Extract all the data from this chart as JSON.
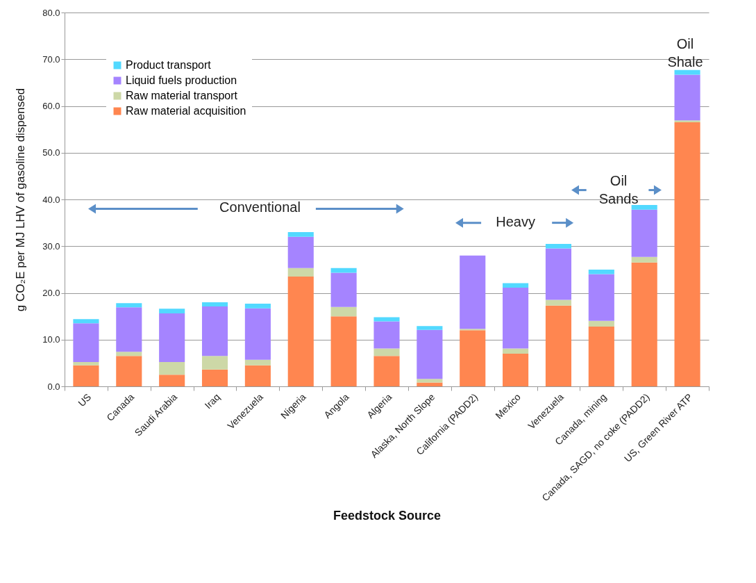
{
  "chart_data": {
    "type": "bar",
    "stacked": true,
    "xlabel": "Feedstock Source",
    "ylabel": "g CO₂E per MJ LHV of gasoline dispensed",
    "categories": [
      "US",
      "Canada",
      "Saudi Arabia",
      "Iraq",
      "Venezuela",
      "Nigeria",
      "Angola",
      "Algeria",
      "Alaska, North Slope",
      "California (PADD2)",
      "Mexico",
      "Venezuela",
      "Canada, mining",
      "Canada, SAGD, no coke (PADD2)",
      "US, Green River ATP"
    ],
    "series": [
      {
        "name": "Raw material acquisition",
        "color": "#ff8650",
        "values": [
          4.5,
          6.5,
          2.5,
          3.6,
          4.5,
          23.5,
          15.0,
          6.5,
          0.8,
          12.0,
          7.0,
          17.3,
          12.8,
          26.5,
          56.5
        ]
      },
      {
        "name": "Raw material transport",
        "color": "#cdd8a7",
        "values": [
          0.7,
          0.9,
          2.7,
          2.9,
          1.2,
          1.8,
          2.0,
          1.6,
          0.8,
          0.3,
          1.1,
          1.2,
          1.2,
          1.2,
          0.4
        ]
      },
      {
        "name": "Liquid fuels production",
        "color": "#a584ff",
        "values": [
          8.3,
          9.5,
          10.4,
          10.6,
          11.0,
          6.7,
          7.3,
          5.8,
          10.5,
          15.7,
          13.0,
          11.0,
          10.0,
          10.1,
          9.8
        ]
      },
      {
        "name": "Product transport",
        "color": "#52d9ff",
        "values": [
          0.9,
          0.9,
          1.0,
          0.9,
          1.0,
          1.0,
          1.0,
          0.9,
          0.8,
          0,
          1.0,
          1.0,
          1.0,
          1.0,
          1.0
        ]
      }
    ],
    "ylim": [
      0,
      80
    ],
    "yticks": [
      {
        "value": 0,
        "label": "0.0"
      },
      {
        "value": 10,
        "label": "10.0"
      },
      {
        "value": 20,
        "label": "20.0"
      },
      {
        "value": 30,
        "label": "30.0"
      },
      {
        "value": 40,
        "label": "40.0"
      },
      {
        "value": 50,
        "label": "50.0"
      },
      {
        "value": 60,
        "label": "60.0"
      },
      {
        "value": 70,
        "label": "70.0"
      },
      {
        "value": 80,
        "label": "80.0"
      }
    ],
    "grid": "y",
    "legend": "top left",
    "annotations": [
      "Conventional",
      "Heavy",
      "Oil Sands",
      "Oil Shale"
    ]
  }
}
